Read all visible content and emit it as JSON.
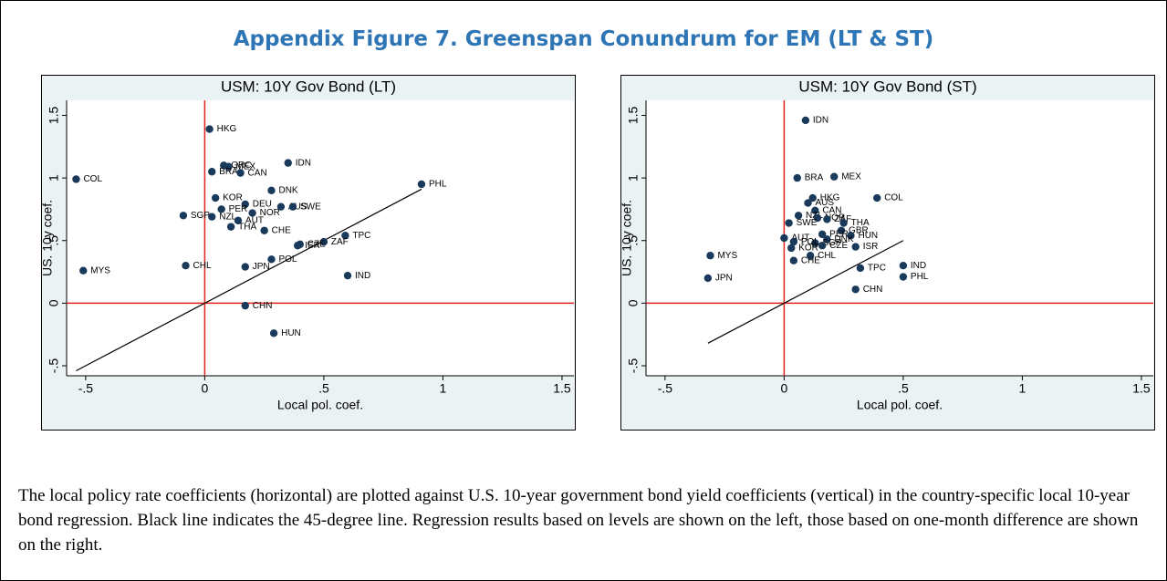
{
  "title": "Appendix Figure 7. Greenspan Conundrum for EM (LT & ST)",
  "chart_data": [
    {
      "type": "scatter",
      "title": "USM: 10Y Gov Bond (LT)",
      "x_label": "Local pol. coef.",
      "y_label": "US. 10y coef.",
      "xlim": [
        -0.58,
        1.55
      ],
      "ylim": [
        -0.58,
        1.62
      ],
      "xticks": [
        {
          "value": -0.5,
          "label": "-.5"
        },
        0,
        {
          "value": 0.5,
          "label": ".5"
        },
        1,
        1.5
      ],
      "yticks": [
        {
          "value": -0.5,
          "label": "-.5"
        },
        0,
        {
          "value": 0.5,
          "label": ".5"
        },
        1,
        1.5
      ],
      "color": "#1a3a5c",
      "zero_line_color": "#e3211c",
      "diagonal_line": true,
      "labels": [
        "HKG",
        "COL",
        "IDN",
        "PHL",
        "GRC",
        "MEX",
        "BRA",
        "CAN",
        "DNK",
        "KOR",
        "DEU",
        "PER",
        "NOR",
        "AUS",
        "SWE",
        "SGP",
        "NZL",
        "AUT",
        "THA",
        "CHE",
        "TPC",
        "ZAF",
        "ISR",
        "CZE",
        "MYS",
        "CHL",
        "JPN",
        "POL",
        "IND",
        "CHN",
        "HUN"
      ],
      "x": [
        0.02,
        -0.54,
        0.35,
        0.91,
        0.08,
        0.1,
        0.03,
        0.15,
        0.28,
        0.045,
        0.17,
        0.07,
        0.2,
        0.32,
        0.37,
        -0.09,
        0.03,
        0.14,
        0.11,
        0.25,
        0.59,
        0.5,
        0.39,
        0.4,
        -0.51,
        -0.08,
        0.17,
        0.28,
        0.6,
        0.17,
        0.29
      ],
      "y": [
        1.39,
        0.99,
        1.12,
        0.95,
        1.1,
        1.09,
        1.05,
        1.04,
        0.9,
        0.84,
        0.79,
        0.75,
        0.72,
        0.77,
        0.77,
        0.7,
        0.69,
        0.66,
        0.61,
        0.58,
        0.54,
        0.49,
        0.46,
        0.47,
        0.26,
        0.3,
        0.29,
        0.35,
        0.22,
        -0.02,
        -0.24
      ]
    },
    {
      "type": "scatter",
      "title": "USM: 10Y Gov Bond (ST)",
      "x_label": "Local pol. coef.",
      "y_label": "US. 10y coef.",
      "xlim": [
        -0.58,
        1.55
      ],
      "ylim": [
        -0.58,
        1.62
      ],
      "xticks": [
        {
          "value": -0.5,
          "label": "-.5"
        },
        0,
        {
          "value": 0.5,
          "label": ".5"
        },
        1,
        1.5
      ],
      "yticks": [
        {
          "value": -0.5,
          "label": "-.5"
        },
        0,
        {
          "value": 0.5,
          "label": ".5"
        },
        1,
        1.5
      ],
      "color": "#1a3a5c",
      "zero_line_color": "#e3211c",
      "diagonal_line": true,
      "labels": [
        "IDN",
        "BRA",
        "MEX",
        "COL",
        "HKG",
        "AUS",
        "CAN",
        "NZL",
        "NOR",
        "ZAF",
        "SWE",
        "THA",
        "GBR",
        "PER",
        "HUN",
        "AUT",
        "DNK",
        "SGP",
        "POL",
        "KOR",
        "CZE",
        "ISR",
        "CHL",
        "CHE",
        "MYS",
        "JPN",
        "TPC",
        "IND",
        "PHL",
        "CHN"
      ],
      "x": [
        0.09,
        0.055,
        0.21,
        0.39,
        0.12,
        0.1,
        0.13,
        0.06,
        0.14,
        0.18,
        0.02,
        0.25,
        0.24,
        0.16,
        0.28,
        0.0,
        0.18,
        0.13,
        0.04,
        0.03,
        0.16,
        0.3,
        0.11,
        0.04,
        -0.31,
        -0.32,
        0.32,
        0.5,
        0.5,
        0.3
      ],
      "y": [
        1.46,
        1.0,
        1.01,
        0.84,
        0.84,
        0.8,
        0.74,
        0.7,
        0.68,
        0.67,
        0.64,
        0.64,
        0.58,
        0.55,
        0.54,
        0.52,
        0.51,
        0.48,
        0.49,
        0.44,
        0.46,
        0.45,
        0.38,
        0.34,
        0.38,
        0.2,
        0.28,
        0.3,
        0.21,
        0.11
      ]
    }
  ],
  "caption": "The local policy rate coefficients (horizontal) are plotted against U.S. 10-year government bond yield coefficients (vertical) in the country-specific local 10-year bond regression. Black line indicates the 45-degree line. Regression results based on levels are shown on the left, those based on one-month difference are shown on the right."
}
